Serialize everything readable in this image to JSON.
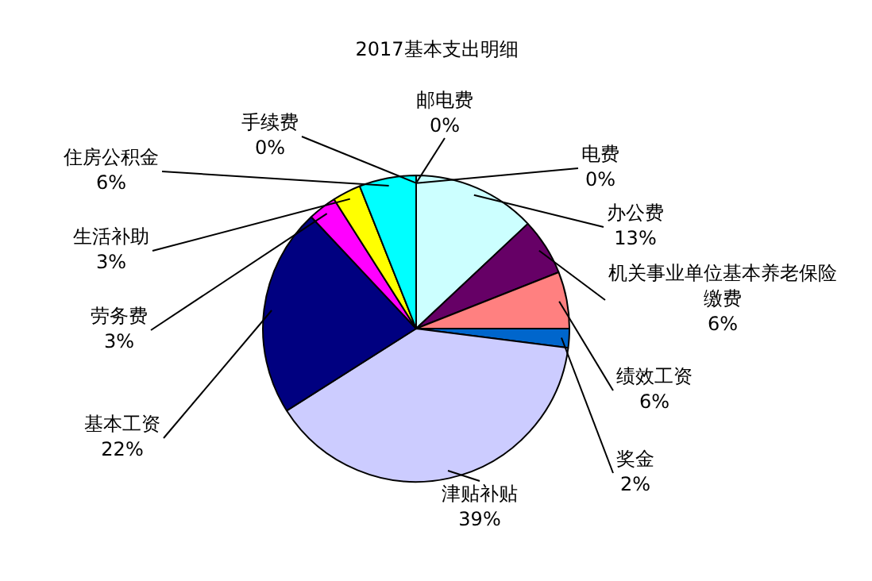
{
  "chart_data": {
    "type": "pie",
    "title": "2017基本支出明细",
    "categories": [
      "邮电费",
      "电费",
      "办公费",
      "机关事业单位基本养老保险缴费",
      "绩效工资",
      "奖金",
      "津贴补贴",
      "基本工资",
      "劳务费",
      "生活补助",
      "住房公积金",
      "手续费"
    ],
    "values": [
      0,
      0,
      13,
      6,
      6,
      2,
      39,
      22,
      3,
      3,
      6,
      0
    ],
    "value_labels": [
      "0%",
      "0%",
      "13%",
      "6%",
      "6%",
      "2%",
      "39%",
      "22%",
      "3%",
      "3%",
      "6%",
      "0%"
    ],
    "colors": [
      "#993366",
      "#ffffcc",
      "#ccffff",
      "#660066",
      "#ff8080",
      "#0066cc",
      "#ccccff",
      "#000080",
      "#ff00ff",
      "#ffff00",
      "#00ffff",
      "#800000"
    ],
    "legend": false
  }
}
